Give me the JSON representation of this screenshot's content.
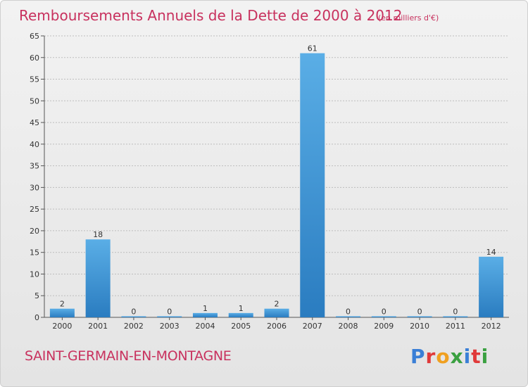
{
  "chart_data": {
    "type": "bar",
    "title": "Remboursements Annuels de la Dette de 2000 à 2012",
    "subtitle": "(en milliers d'€)",
    "categories": [
      "2000",
      "2001",
      "2002",
      "2003",
      "2004",
      "2005",
      "2006",
      "2007",
      "2008",
      "2009",
      "2010",
      "2011",
      "2012"
    ],
    "values": [
      2,
      18,
      0,
      0,
      1,
      1,
      2,
      61,
      0,
      0,
      0,
      0,
      14
    ],
    "ylim": [
      0,
      65
    ],
    "yticks": [
      0,
      5,
      10,
      15,
      20,
      25,
      30,
      35,
      40,
      45,
      50,
      55,
      60,
      65
    ],
    "grid": true,
    "xlabel": "",
    "ylabel": "",
    "bar_color_top": "#5aaee6",
    "bar_color_bottom": "#2a7cc0"
  },
  "footer": {
    "commune": "SAINT-GERMAIN-EN-MONTAGNE",
    "logo": "Proxiti"
  },
  "colors": {
    "title": "#c8315e",
    "grid": "#bdbdbd"
  }
}
